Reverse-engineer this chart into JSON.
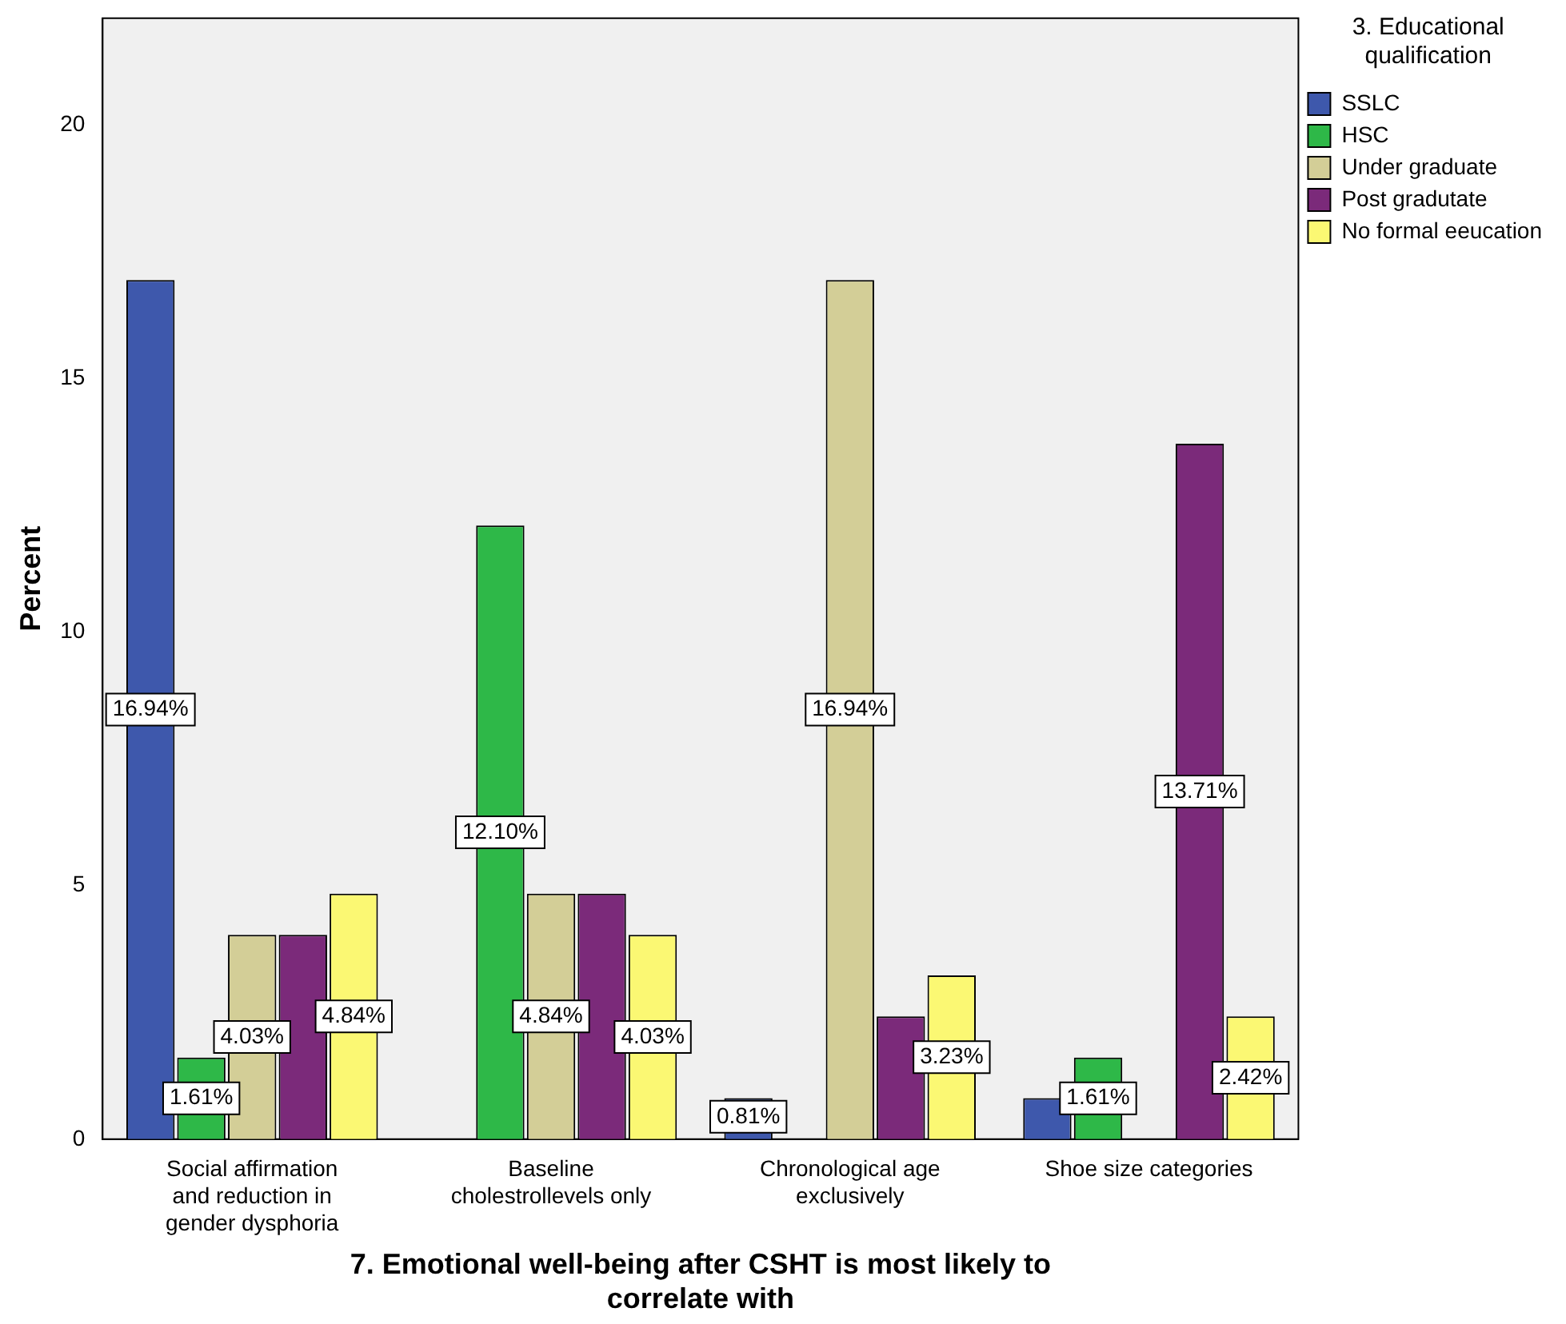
{
  "chart_data": {
    "type": "bar",
    "xlabel": "7. Emotional well-being after CSHT is most likely to correlate with",
    "ylabel": "Percent",
    "legend_title": "3. Educational qualification",
    "categories": [
      "Social affirmation and reduction in gender dysphoria",
      "Baseline cholestrollevels only",
      "Chronological age exclusively",
      "Shoe size categories"
    ],
    "series": [
      {
        "name": "SSLC",
        "color": "#3e58ac",
        "values": [
          16.94,
          null,
          0.81,
          0.81
        ],
        "value_labels": [
          "16.94%",
          null,
          "0.81%",
          null
        ]
      },
      {
        "name": "HSC",
        "color": "#2eb848",
        "values": [
          1.61,
          12.1,
          null,
          1.61
        ],
        "value_labels": [
          "1.61%",
          "12.10%",
          null,
          "1.61%"
        ]
      },
      {
        "name": "Under graduate",
        "color": "#d3ce97",
        "values": [
          4.03,
          4.84,
          16.94,
          null
        ],
        "value_labels": [
          "4.03%",
          "4.84%",
          "16.94%",
          null
        ]
      },
      {
        "name": "Post gradutate",
        "color": "#7b2a7a",
        "values": [
          4.03,
          4.84,
          2.42,
          13.71
        ],
        "value_labels": [
          null,
          null,
          null,
          "13.71%"
        ]
      },
      {
        "name": "No formal eeucation",
        "color": "#fbf873",
        "values": [
          4.84,
          4.03,
          3.23,
          2.42
        ],
        "value_labels": [
          "4.84%",
          "4.03%",
          "3.23%",
          "2.42%"
        ]
      }
    ],
    "ylim": [
      0,
      22.1
    ],
    "yticks": [
      0,
      5,
      10,
      15,
      20
    ],
    "grid": false,
    "legend": "right"
  }
}
